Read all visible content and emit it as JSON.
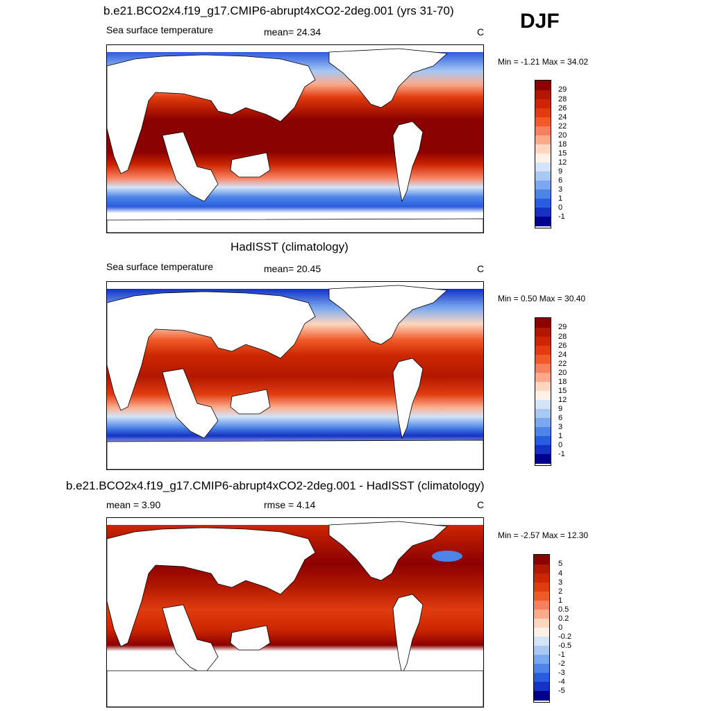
{
  "season": "DJF",
  "panels": [
    {
      "title": "b.e21.BCO2x4.f19_g17.CMIP6-abrupt4xCO2-2deg.001 (yrs 31-70)",
      "left_label": "Sea surface temperature",
      "center_label": "mean=  24.34",
      "units": "C",
      "minmax": "Min =  -1.21 Max =  34.02"
    },
    {
      "title": "HadISST (climatology)",
      "left_label": "Sea surface temperature",
      "center_label": "mean=  20.45",
      "units": "C",
      "minmax": "Min =   0.50 Max =  30.40"
    },
    {
      "title": "b.e21.BCO2x4.f19_g17.CMIP6-abrupt4xCO2-2deg.001 - HadISST (climatology)",
      "left_label": "mean =   3.90",
      "center_label": "rmse =   4.14",
      "units": "C",
      "minmax": "Min =  -2.57 Max =  12.30"
    }
  ],
  "colorbars": {
    "sst_levels": [
      "29",
      "28",
      "26",
      "24",
      "22",
      "20",
      "18",
      "15",
      "12",
      "9",
      "6",
      "3",
      "1",
      "0",
      "-1"
    ],
    "diff_levels": [
      "5",
      "4",
      "3",
      "2",
      "1",
      "0.5",
      "0.2",
      "0",
      "-0.2",
      "-0.5",
      "-1",
      "-2",
      "-3",
      "-4",
      "-5"
    ],
    "colors": [
      "#8b0000",
      "#b21800",
      "#cc2600",
      "#e03c10",
      "#f05a28",
      "#f88060",
      "#fcaa8a",
      "#fdd6c0",
      "#fdf0e6",
      "#d4e4f8",
      "#a8c8f4",
      "#7aa8f0",
      "#4c84e8",
      "#2a5ce0",
      "#1432c4",
      "#00008c"
    ]
  }
}
